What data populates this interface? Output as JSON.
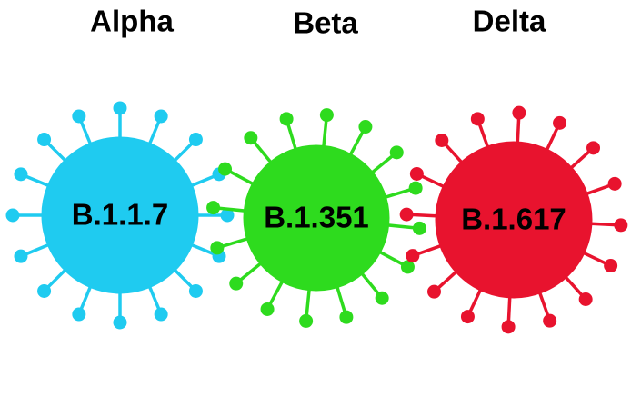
{
  "variants": [
    {
      "name": "Alpha",
      "lineage": "B.1.1.7"
    },
    {
      "name": "Beta",
      "lineage": "B.1.351"
    },
    {
      "name": "Delta",
      "lineage": "B.1.617"
    }
  ]
}
